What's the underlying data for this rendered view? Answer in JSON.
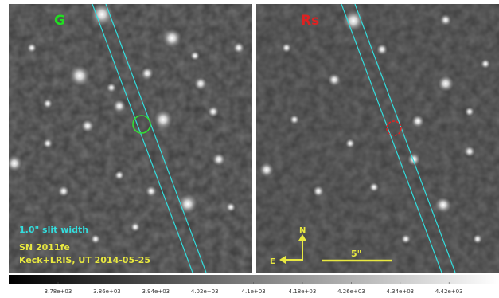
{
  "panels": [
    {
      "band": "G",
      "band_color": "#22dd22",
      "marker_color": "#33dd33"
    },
    {
      "band": "Rs",
      "band_color": "#dd2222",
      "marker_color": "#dd2222"
    }
  ],
  "annotations": {
    "slit": "1.0\" slit width",
    "slit_color": "#33dddd",
    "object": "SN 2011fe",
    "observation": "Keck+LRIS, UT 2014-05-25",
    "text_color": "#e8e840"
  },
  "compass": {
    "north": "N",
    "east": "E",
    "color": "#e8e840"
  },
  "scalebar": {
    "label": "5\"",
    "color": "#e8e840"
  },
  "colorbar": {
    "ticks": [
      "3.78e+03",
      "3.86e+03",
      "3.94e+03",
      "4.02e+03",
      "4.1e+03",
      "4.18e+03",
      "4.26e+03",
      "4.34e+03",
      "4.42e+03"
    ]
  }
}
